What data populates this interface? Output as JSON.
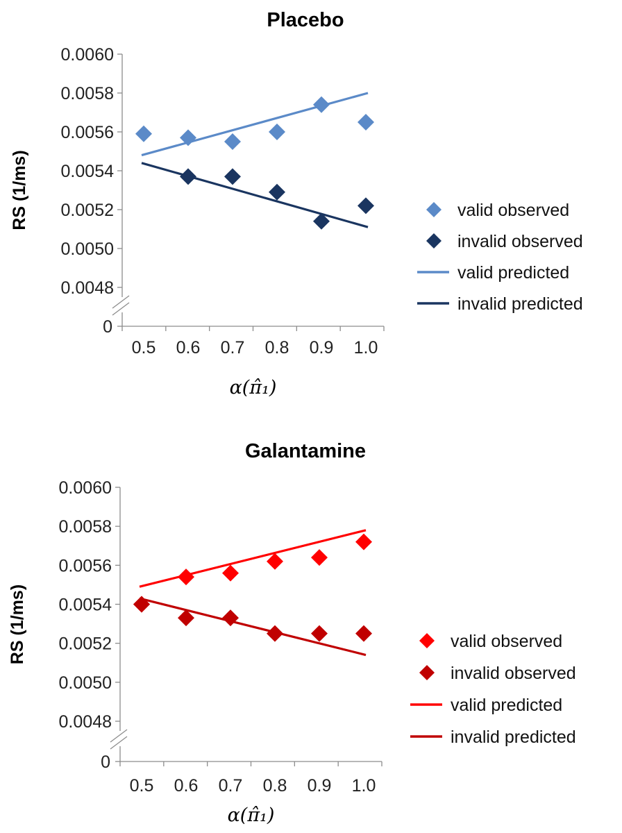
{
  "chart_data": [
    {
      "type": "scatter",
      "title": "Placebo",
      "ylabel": "RS (1/ms)",
      "xlabel": "α(π̂₁)",
      "x": [
        0.5,
        0.6,
        0.7,
        0.8,
        0.9,
        1.0
      ],
      "xtick_labels": [
        "0.5",
        "0.6",
        "0.7",
        "0.8",
        "0.9",
        "1.0"
      ],
      "yticks": [
        "0.0060",
        "0.0058",
        "0.0056",
        "0.0054",
        "0.0052",
        "0.0050",
        "0.0048"
      ],
      "ybreak_label": "0",
      "ylim": [
        0.0048,
        0.006
      ],
      "axis_break": true,
      "legend_position": "right",
      "series": [
        {
          "name": "valid observed",
          "kind": "marker",
          "color": "#5b8ac8",
          "values": [
            0.00559,
            0.00557,
            0.00555,
            0.0056,
            0.00574,
            0.00565
          ]
        },
        {
          "name": "invalid observed",
          "kind": "marker",
          "color": "#1a3560",
          "values": [
            null,
            0.00537,
            0.00537,
            0.00529,
            0.00514,
            0.00522
          ]
        },
        {
          "name": "valid predicted",
          "kind": "line",
          "color": "#5b8ac8",
          "values": [
            0.00548,
            0.00555,
            0.00561,
            0.00567,
            0.00574,
            0.0058
          ]
        },
        {
          "name": "invalid predicted",
          "kind": "line",
          "color": "#1a3560",
          "values": [
            0.00544,
            0.00538,
            0.00531,
            0.00524,
            0.00518,
            0.00511
          ]
        }
      ]
    },
    {
      "type": "scatter",
      "title": "Galantamine",
      "ylabel": "RS (1/ms)",
      "xlabel": "α(π̂₁)",
      "x": [
        0.5,
        0.6,
        0.7,
        0.8,
        0.9,
        1.0
      ],
      "xtick_labels": [
        "0.5",
        "0.6",
        "0.7",
        "0.8",
        "0.9",
        "1.0"
      ],
      "yticks": [
        "0.0060",
        "0.0058",
        "0.0056",
        "0.0054",
        "0.0052",
        "0.0050",
        "0.0048"
      ],
      "ybreak_label": "0",
      "ylim": [
        0.0048,
        0.006
      ],
      "axis_break": true,
      "legend_position": "right",
      "series": [
        {
          "name": "valid observed",
          "kind": "marker",
          "color": "#ff0000",
          "values": [
            0.0054,
            0.00554,
            0.00556,
            0.00562,
            0.00564,
            0.00572
          ]
        },
        {
          "name": "invalid observed",
          "kind": "marker",
          "color": "#c00000",
          "values": [
            0.0054,
            0.00533,
            0.00533,
            0.00525,
            0.00525,
            0.00525
          ]
        },
        {
          "name": "valid predicted",
          "kind": "line",
          "color": "#ff0000",
          "values": [
            0.00549,
            0.00555,
            0.00561,
            0.00566,
            0.00572,
            0.00578
          ]
        },
        {
          "name": "invalid predicted",
          "kind": "line",
          "color": "#c00000",
          "values": [
            0.00543,
            0.00537,
            0.0053,
            0.00525,
            0.0052,
            0.00514
          ]
        }
      ]
    }
  ]
}
